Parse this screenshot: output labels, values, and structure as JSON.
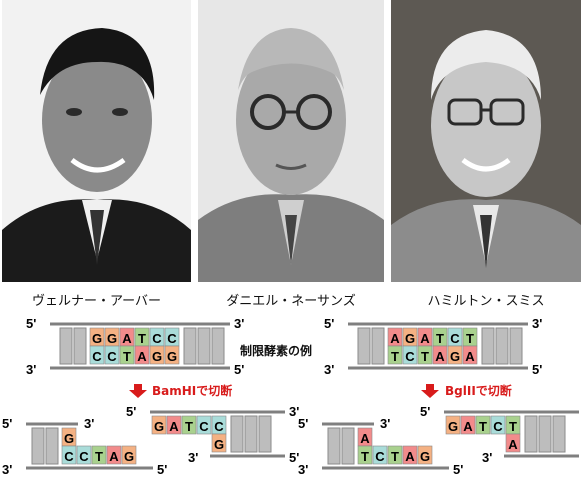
{
  "scientists": [
    {
      "name": "ヴェルナー・アーバー"
    },
    {
      "name": "ダニエル・ネーサンズ"
    },
    {
      "name": "ハミルトン・スミス"
    }
  ],
  "diagram": {
    "title": "制限酵素の例",
    "prime5": "5'",
    "prime3": "3'",
    "bamhi": {
      "label": "BamHIで切断",
      "top": [
        "G",
        "G",
        "A",
        "T",
        "C",
        "C"
      ],
      "bottom": [
        "C",
        "C",
        "T",
        "A",
        "G",
        "G"
      ]
    },
    "bglii": {
      "label": "BglIIで切断",
      "top": [
        "A",
        "G",
        "A",
        "T",
        "C",
        "T"
      ],
      "bottom": [
        "T",
        "C",
        "T",
        "A",
        "G",
        "A"
      ]
    },
    "bamhi_left_top": [
      "G"
    ],
    "bamhi_left_bottom": [
      "C",
      "C",
      "T",
      "A",
      "G"
    ],
    "bamhi_right_top": [
      "G",
      "A",
      "T",
      "C",
      "C"
    ],
    "bamhi_right_bottom": [
      "G"
    ],
    "bglii_left_top": [
      "A"
    ],
    "bglii_left_bottom": [
      "T",
      "C",
      "T",
      "A",
      "G"
    ],
    "bglii_right_top": [
      "G",
      "A",
      "T",
      "C",
      "T"
    ],
    "bglii_right_bottom": [
      "A"
    ],
    "colors": {
      "G": "#f4b183",
      "A": "#f28b8b",
      "T": "#a9d18e",
      "C": "#a9dcd9",
      "backbone": "#7f7f7f",
      "arrow": "#d81b1b"
    }
  }
}
